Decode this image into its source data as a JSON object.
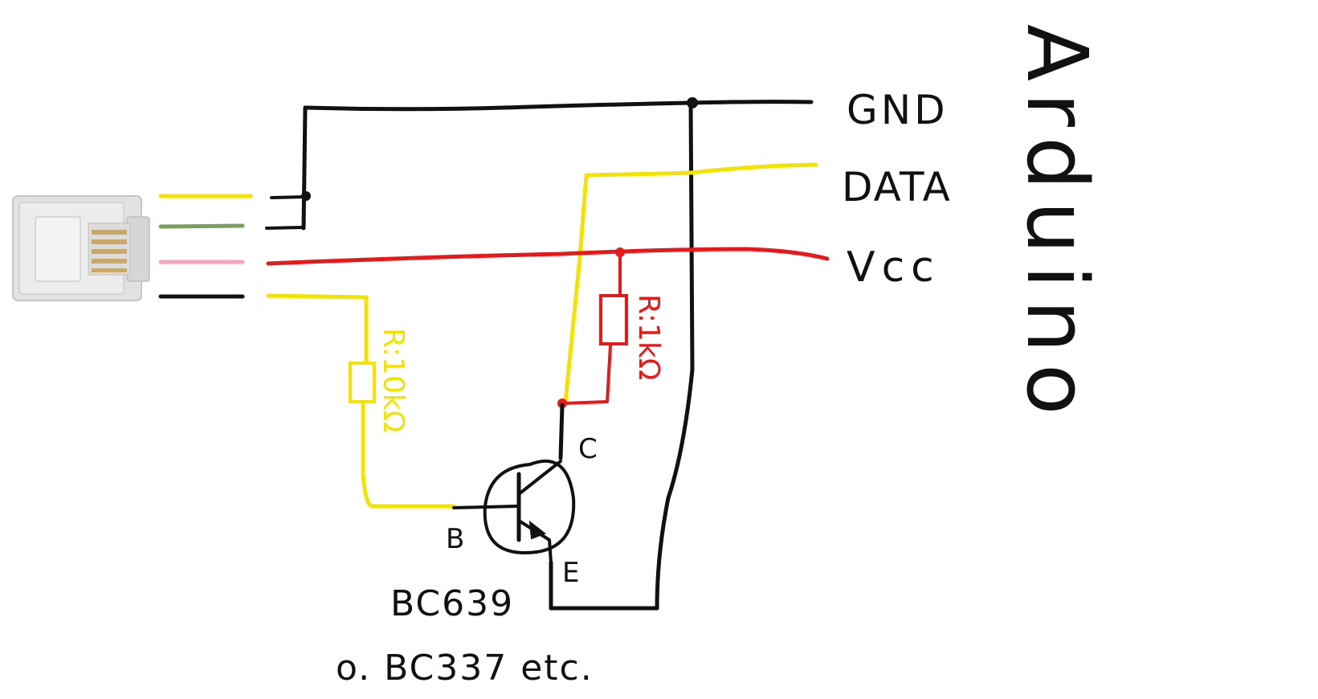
{
  "colors": {
    "ground_wire": "#111111",
    "data_wire": "#f2e400",
    "vcc_wire": "#e61a1a",
    "green_wire": "#7ba05b",
    "pink_wire": "#f4a7b9",
    "background": "#ffffff",
    "connector_body": "#d9d9d9",
    "connector_pins": "#c8a96a"
  },
  "arduino_pins": {
    "gnd": "GND",
    "data": "DATA",
    "vcc": "Vcc"
  },
  "board_label": "Arduino",
  "resistors": {
    "base": "R:10kΩ",
    "pullup": "R:1kΩ"
  },
  "transistor": {
    "collector": "C",
    "base": "B",
    "emitter": "E",
    "part": "BC639",
    "alternatives": "o. BC337 etc."
  },
  "connector": {
    "icon": "rj-plug-icon"
  }
}
